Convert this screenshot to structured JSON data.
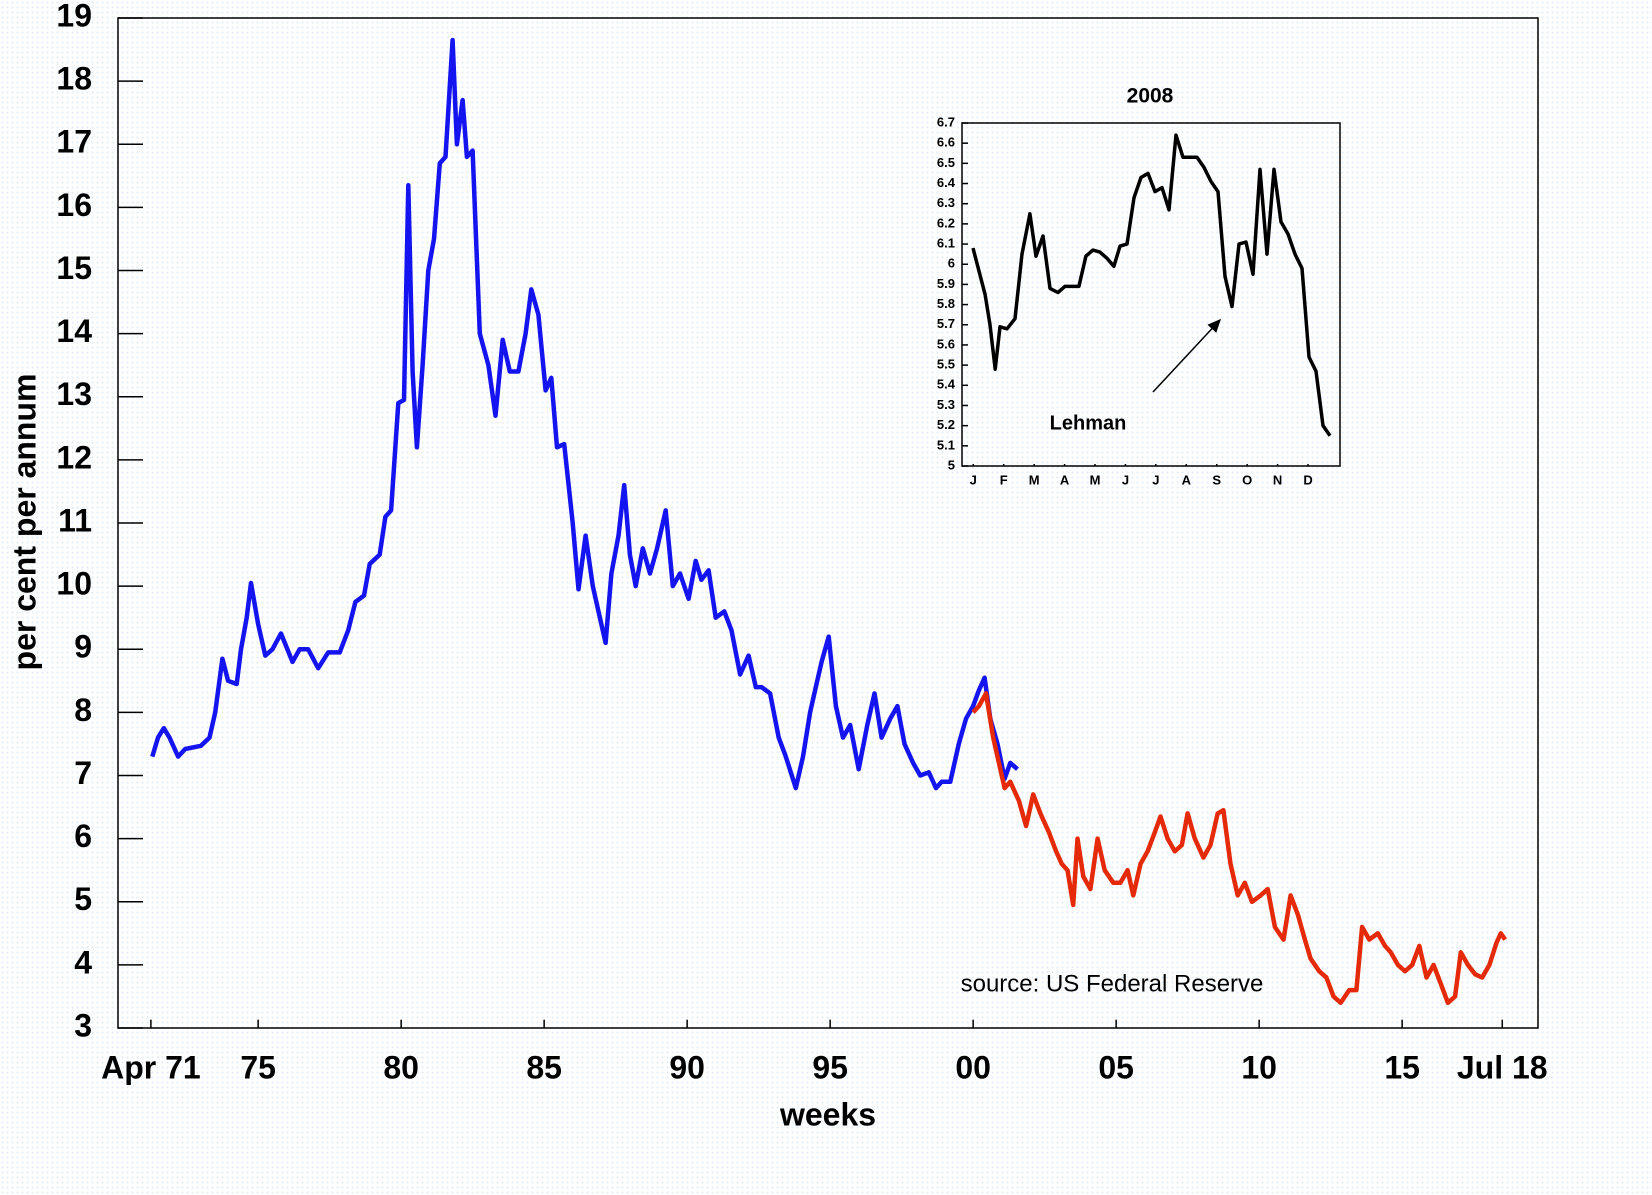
{
  "chart_data": [
    {
      "type": "line",
      "xlabel": "weeks",
      "ylabel": "per cent per annum",
      "annotation": "source: US Federal Reserve",
      "xlim": [
        1970.1,
        2019.75
      ],
      "xticks": [
        {
          "value": 1971.25,
          "label": "Apr 71"
        },
        {
          "value": 1975,
          "label": "75"
        },
        {
          "value": 1980,
          "label": "80"
        },
        {
          "value": 1985,
          "label": "85"
        },
        {
          "value": 1990,
          "label": "90"
        },
        {
          "value": 1995,
          "label": "95"
        },
        {
          "value": 2000,
          "label": "00"
        },
        {
          "value": 2005,
          "label": "05"
        },
        {
          "value": 2010,
          "label": "10"
        },
        {
          "value": 2015,
          "label": "15"
        },
        {
          "value": 2018.5,
          "label": "Jul 18"
        }
      ],
      "ylim": [
        3,
        19
      ],
      "yticks": [
        3,
        4,
        5,
        6,
        7,
        8,
        9,
        10,
        11,
        12,
        13,
        14,
        15,
        16,
        17,
        18,
        19
      ],
      "grid": false,
      "series": [
        {
          "color": "#1414f0",
          "x": [
            1971.3,
            1971.5,
            1971.7,
            1971.9,
            1972.2,
            1972.45,
            1973,
            1973.3,
            1973.5,
            1973.75,
            1973.95,
            1974.25,
            1974.4,
            1974.6,
            1974.75,
            1975,
            1975.25,
            1975.5,
            1975.8,
            1976.2,
            1976.45,
            1976.75,
            1977.1,
            1977.45,
            1977.85,
            1978.15,
            1978.4,
            1978.7,
            1978.9,
            1979.25,
            1979.45,
            1979.65,
            1979.9,
            1980.1,
            1980.25,
            1980.4,
            1980.55,
            1980.75,
            1980.95,
            1981.15,
            1981.35,
            1981.55,
            1981.8,
            1981.95,
            1982.15,
            1982.3,
            1982.5,
            1982.75,
            1983.05,
            1983.3,
            1983.55,
            1983.8,
            1984.1,
            1984.35,
            1984.55,
            1984.8,
            1985.05,
            1985.25,
            1985.45,
            1985.7,
            1986,
            1986.2,
            1986.45,
            1986.7,
            1986.95,
            1987.15,
            1987.35,
            1987.6,
            1987.8,
            1988,
            1988.2,
            1988.45,
            1988.7,
            1988.95,
            1989.25,
            1989.5,
            1989.75,
            1990.05,
            1990.3,
            1990.5,
            1990.75,
            1991,
            1991.3,
            1991.55,
            1991.85,
            1992.15,
            1992.4,
            1992.6,
            1992.9,
            1993.2,
            1993.45,
            1993.8,
            1994.05,
            1994.3,
            1994.5,
            1994.7,
            1994.95,
            1995.2,
            1995.45,
            1995.7,
            1996,
            1996.3,
            1996.55,
            1996.8,
            1997.1,
            1997.35,
            1997.6,
            1997.9,
            1998.15,
            1998.45,
            1998.7,
            1998.9,
            1999.2,
            1999.5,
            1999.75,
            2000,
            2000.2,
            2000.4,
            2000.6,
            2000.85,
            2001.1,
            2001.3,
            2001.55
          ],
          "values": [
            7.3,
            7.6,
            7.75,
            7.6,
            7.3,
            7.42,
            7.47,
            7.6,
            8.0,
            8.85,
            8.5,
            8.45,
            9.0,
            9.5,
            10.05,
            9.4,
            8.9,
            9.0,
            9.25,
            8.8,
            9.0,
            9.0,
            8.7,
            8.95,
            8.95,
            9.3,
            9.75,
            9.85,
            10.35,
            10.5,
            11.1,
            11.2,
            12.9,
            12.95,
            16.35,
            13.4,
            12.2,
            13.5,
            15.0,
            15.5,
            16.7,
            16.8,
            18.65,
            17.0,
            17.7,
            16.8,
            16.9,
            14.0,
            13.5,
            12.7,
            13.9,
            13.4,
            13.4,
            14.0,
            14.7,
            14.3,
            13.1,
            13.3,
            12.2,
            12.25,
            11.0,
            9.95,
            10.8,
            10.0,
            9.5,
            9.1,
            10.2,
            10.8,
            11.6,
            10.5,
            10.0,
            10.6,
            10.2,
            10.6,
            11.2,
            10.0,
            10.2,
            9.8,
            10.4,
            10.1,
            10.25,
            9.5,
            9.6,
            9.3,
            8.6,
            8.9,
            8.4,
            8.4,
            8.3,
            7.6,
            7.3,
            6.8,
            7.3,
            8.0,
            8.4,
            8.8,
            9.2,
            8.1,
            7.6,
            7.8,
            7.1,
            7.8,
            8.3,
            7.6,
            7.9,
            8.1,
            7.5,
            7.2,
            7.0,
            7.05,
            6.8,
            6.9,
            6.9,
            7.5,
            7.9,
            8.1,
            8.35,
            8.55,
            7.9,
            7.5,
            6.95,
            7.2,
            7.1
          ]
        },
        {
          "color": "#e42a08",
          "x": [
            2000,
            2000.2,
            2000.45,
            2000.7,
            2000.9,
            2001.1,
            2001.3,
            2001.6,
            2001.85,
            2002.1,
            2002.35,
            2002.65,
            2002.9,
            2003.1,
            2003.3,
            2003.5,
            2003.65,
            2003.85,
            2004.1,
            2004.35,
            2004.6,
            2004.9,
            2005.15,
            2005.4,
            2005.6,
            2005.85,
            2006.1,
            2006.35,
            2006.55,
            2006.8,
            2007.05,
            2007.3,
            2007.5,
            2007.75,
            2008.05,
            2008.3,
            2008.55,
            2008.75,
            2009,
            2009.25,
            2009.5,
            2009.75,
            2010.05,
            2010.3,
            2010.55,
            2010.85,
            2011.1,
            2011.35,
            2011.6,
            2011.8,
            2012.1,
            2012.35,
            2012.6,
            2012.85,
            2013.15,
            2013.4,
            2013.6,
            2013.85,
            2014.15,
            2014.4,
            2014.6,
            2014.85,
            2015.1,
            2015.35,
            2015.6,
            2015.85,
            2016.1,
            2016.35,
            2016.6,
            2016.85,
            2017.05,
            2017.3,
            2017.55,
            2017.8,
            2018.05,
            2018.3,
            2018.45,
            2018.6
          ],
          "values": [
            8.0,
            8.1,
            8.3,
            7.6,
            7.2,
            6.8,
            6.9,
            6.6,
            6.2,
            6.7,
            6.4,
            6.1,
            5.8,
            5.6,
            5.5,
            4.95,
            6.0,
            5.4,
            5.2,
            6.0,
            5.5,
            5.3,
            5.3,
            5.5,
            5.1,
            5.6,
            5.8,
            6.1,
            6.35,
            6.0,
            5.8,
            5.9,
            6.4,
            6.0,
            5.7,
            5.9,
            6.4,
            6.45,
            5.6,
            5.1,
            5.3,
            5.0,
            5.1,
            5.2,
            4.6,
            4.4,
            5.1,
            4.8,
            4.4,
            4.1,
            3.9,
            3.8,
            3.5,
            3.4,
            3.6,
            3.6,
            4.6,
            4.4,
            4.5,
            4.3,
            4.2,
            4.0,
            3.9,
            4.0,
            4.3,
            3.8,
            4.0,
            3.7,
            3.4,
            3.5,
            4.2,
            4.0,
            3.85,
            3.8,
            4.0,
            4.35,
            4.5,
            4.4
          ]
        }
      ]
    },
    {
      "type": "line",
      "title": "2008",
      "annotation": "Lehman",
      "xlim": [
        0.13,
        12.55
      ],
      "xticks": [
        {
          "value": 0.5,
          "label": "J"
        },
        {
          "value": 1.5,
          "label": "F"
        },
        {
          "value": 2.5,
          "label": "M"
        },
        {
          "value": 3.5,
          "label": "A"
        },
        {
          "value": 4.5,
          "label": "M"
        },
        {
          "value": 5.5,
          "label": "J"
        },
        {
          "value": 6.5,
          "label": "J"
        },
        {
          "value": 7.5,
          "label": "A"
        },
        {
          "value": 8.5,
          "label": "S"
        },
        {
          "value": 9.5,
          "label": "O"
        },
        {
          "value": 10.5,
          "label": "N"
        },
        {
          "value": 11.5,
          "label": "D"
        }
      ],
      "ylim": [
        5,
        6.7
      ],
      "yticks": [
        5,
        5.1,
        5.2,
        5.3,
        5.4,
        5.5,
        5.6,
        5.7,
        5.8,
        5.9,
        6,
        6.1,
        6.2,
        6.3,
        6.4,
        6.5,
        6.6,
        6.7
      ],
      "grid": false,
      "series": [
        {
          "color": "#000000",
          "x": [
            0.49,
            0.89,
            1.05,
            1.22,
            1.38,
            1.61,
            1.87,
            2.1,
            2.36,
            2.56,
            2.79,
            3.02,
            3.28,
            3.51,
            3.74,
            3.97,
            4.2,
            4.43,
            4.66,
            4.89,
            5.12,
            5.32,
            5.55,
            5.78,
            6.01,
            6.24,
            6.47,
            6.7,
            6.93,
            7.16,
            7.39,
            7.62,
            7.85,
            8.08,
            8.31,
            8.54,
            8.77,
            9.0,
            9.23,
            9.46,
            9.69,
            9.92,
            10.15,
            10.38,
            10.61,
            10.84,
            11.07,
            11.3,
            11.53,
            11.76,
            11.99,
            12.22
          ],
          "values": [
            6.08,
            5.85,
            5.7,
            5.48,
            5.69,
            5.68,
            5.73,
            6.05,
            6.25,
            6.04,
            6.14,
            5.88,
            5.86,
            5.89,
            5.89,
            5.89,
            6.04,
            6.07,
            6.06,
            6.03,
            5.99,
            6.09,
            6.1,
            6.33,
            6.43,
            6.45,
            6.36,
            6.38,
            6.27,
            6.64,
            6.53,
            6.53,
            6.53,
            6.48,
            6.41,
            6.36,
            5.94,
            5.79,
            6.1,
            6.11,
            5.95,
            6.47,
            6.05,
            6.47,
            6.21,
            6.15,
            6.05,
            5.98,
            5.54,
            5.47,
            5.2,
            5.15
          ]
        }
      ]
    }
  ]
}
